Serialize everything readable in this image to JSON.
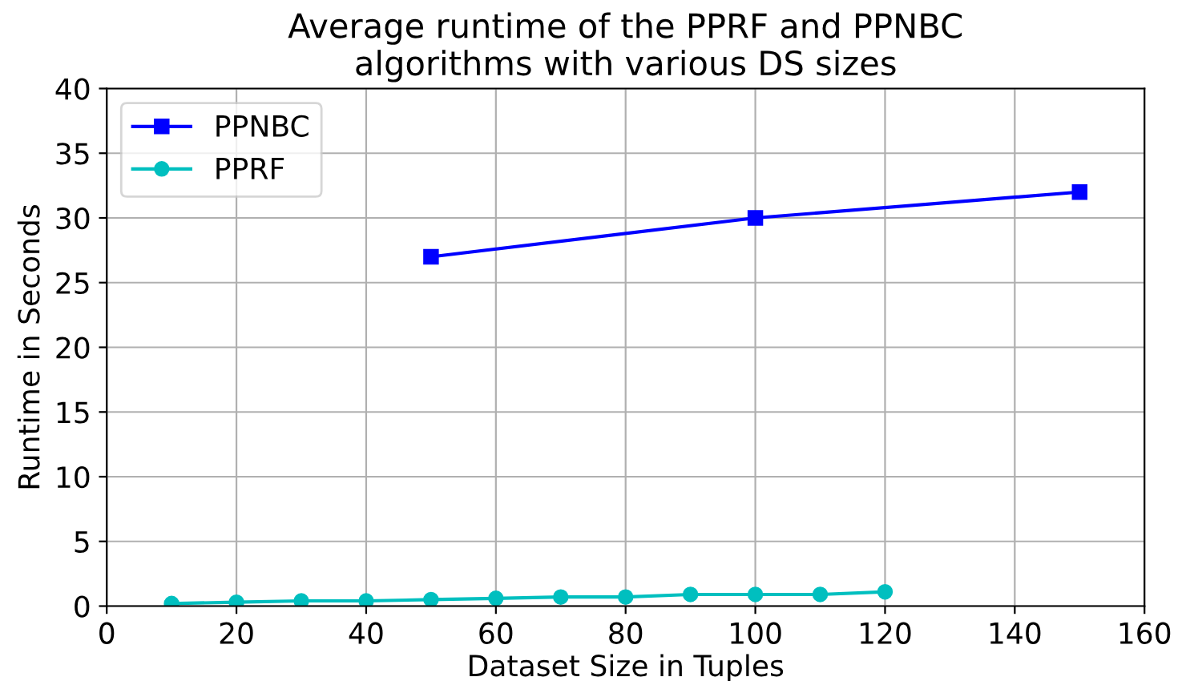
{
  "chart_data": {
    "type": "line",
    "title": "Average runtime of the PPRF and PPNBC\nalgorithms with various DS sizes",
    "xlabel": "Dataset Size in Tuples",
    "ylabel": "Runtime in Seconds",
    "series": [
      {
        "name": "PPNBC",
        "color": "#0000ff",
        "marker": "square",
        "x": [
          50,
          100,
          150
        ],
        "values": [
          27,
          30,
          32
        ]
      },
      {
        "name": "PPRF",
        "color": "#00bfbf",
        "marker": "circle",
        "x": [
          10,
          20,
          30,
          40,
          50,
          60,
          70,
          80,
          90,
          100,
          110,
          120
        ],
        "values": [
          0.2,
          0.3,
          0.4,
          0.4,
          0.5,
          0.6,
          0.7,
          0.7,
          0.9,
          0.9,
          0.9,
          1.1
        ]
      }
    ],
    "xlim": [
      0,
      160
    ],
    "xticks": [
      0,
      20,
      40,
      60,
      80,
      100,
      120,
      140,
      160
    ],
    "ylim": [
      0,
      40
    ],
    "yticks": [
      0,
      5,
      10,
      15,
      20,
      25,
      30,
      35,
      40
    ],
    "grid": true,
    "legend": "top left",
    "line_style": "solid"
  }
}
